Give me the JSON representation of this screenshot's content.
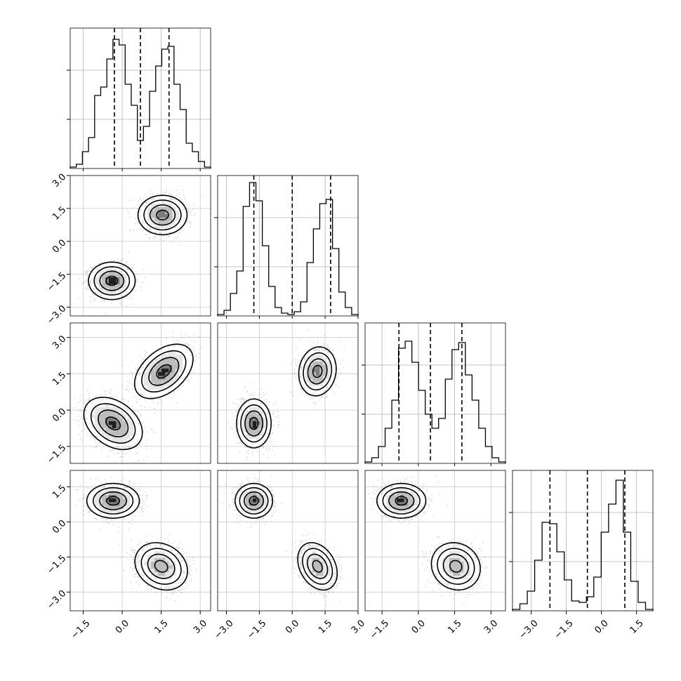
{
  "chart_data": {
    "type": "corner",
    "title": "",
    "grid": true,
    "parameters": [
      {
        "range": [
          -2.0,
          3.4
        ],
        "ticks": [
          "−1.5",
          "0.0",
          "1.5",
          "3.0"
        ],
        "quantiles": [
          -0.3,
          0.7,
          1.8
        ],
        "hist": [
          0.01,
          0.03,
          0.12,
          0.22,
          0.52,
          0.58,
          0.78,
          0.92,
          0.88,
          0.6,
          0.45,
          0.2,
          0.3,
          0.55,
          0.73,
          0.85,
          0.87,
          0.6,
          0.42,
          0.18,
          0.12,
          0.05,
          0.01
        ]
      },
      {
        "range": [
          -3.4,
          3.0
        ],
        "ticks": [
          "−3.0",
          "−1.5",
          "0.0",
          "1.5",
          "3.0"
        ],
        "quantiles": [
          -1.75,
          0.0,
          1.75
        ],
        "hist": [
          0.01,
          0.04,
          0.16,
          0.32,
          0.78,
          0.95,
          0.82,
          0.5,
          0.21,
          0.06,
          0.02,
          0.01,
          0.03,
          0.1,
          0.38,
          0.62,
          0.8,
          0.83,
          0.48,
          0.17,
          0.06,
          0.01
        ]
      },
      {
        "range": [
          -2.2,
          3.6
        ],
        "ticks": [
          "−1.5",
          "0.0",
          "1.5",
          "3.0"
        ],
        "quantiles": [
          -0.8,
          0.5,
          1.8
        ],
        "hist": [
          0.01,
          0.04,
          0.12,
          0.25,
          0.45,
          0.82,
          0.87,
          0.72,
          0.52,
          0.35,
          0.25,
          0.32,
          0.6,
          0.81,
          0.86,
          0.63,
          0.45,
          0.25,
          0.12,
          0.04,
          0.01
        ]
      },
      {
        "range": [
          -3.8,
          2.2
        ],
        "ticks": [
          "−3.0",
          "−1.5",
          "0.0",
          "1.5"
        ],
        "quantiles": [
          -2.2,
          -0.6,
          1.0
        ],
        "hist": [
          0.01,
          0.05,
          0.14,
          0.36,
          0.63,
          0.62,
          0.42,
          0.22,
          0.07,
          0.06,
          0.1,
          0.24,
          0.56,
          0.76,
          0.93,
          0.56,
          0.21,
          0.06,
          0.01
        ]
      }
    ],
    "pairs": [
      {
        "row": 1,
        "col": 0,
        "modes": [
          {
            "x": -0.4,
            "y": -1.8,
            "sx": 0.4,
            "sy": 0.38,
            "rho": 0.0,
            "weight": 0.5
          },
          {
            "x": 1.55,
            "y": 1.2,
            "sx": 0.42,
            "sy": 0.4,
            "rho": 0.0,
            "weight": 0.5
          }
        ]
      },
      {
        "row": 2,
        "col": 0,
        "modes": [
          {
            "x": -0.35,
            "y": -0.55,
            "sx": 0.5,
            "sy": 0.48,
            "rho": -0.35,
            "weight": 0.5
          },
          {
            "x": 1.6,
            "y": 1.6,
            "sx": 0.5,
            "sy": 0.5,
            "rho": 0.45,
            "weight": 0.5
          }
        ]
      },
      {
        "row": 2,
        "col": 1,
        "modes": [
          {
            "x": -1.75,
            "y": -0.55,
            "sx": 0.35,
            "sy": 0.45,
            "rho": 0.0,
            "weight": 0.5
          },
          {
            "x": 1.15,
            "y": 1.6,
            "sx": 0.38,
            "sy": 0.45,
            "rho": 0.1,
            "weight": 0.5
          }
        ]
      },
      {
        "row": 3,
        "col": 0,
        "modes": [
          {
            "x": -0.35,
            "y": 0.9,
            "sx": 0.45,
            "sy": 0.33,
            "rho": 0.0,
            "weight": 0.5
          },
          {
            "x": 1.5,
            "y": -1.9,
            "sx": 0.45,
            "sy": 0.45,
            "rho": -0.2,
            "weight": 0.5
          }
        ]
      },
      {
        "row": 3,
        "col": 1,
        "modes": [
          {
            "x": -1.75,
            "y": 0.9,
            "sx": 0.38,
            "sy": 0.33,
            "rho": 0.0,
            "weight": 0.5
          },
          {
            "x": 1.15,
            "y": -1.9,
            "sx": 0.4,
            "sy": 0.45,
            "rho": -0.3,
            "weight": 0.5
          }
        ]
      },
      {
        "row": 3,
        "col": 2,
        "modes": [
          {
            "x": -0.7,
            "y": 0.9,
            "sx": 0.45,
            "sy": 0.33,
            "rho": 0.0,
            "weight": 0.5
          },
          {
            "x": 1.55,
            "y": -1.9,
            "sx": 0.45,
            "sy": 0.45,
            "rho": -0.1,
            "weight": 0.5
          }
        ]
      }
    ]
  }
}
